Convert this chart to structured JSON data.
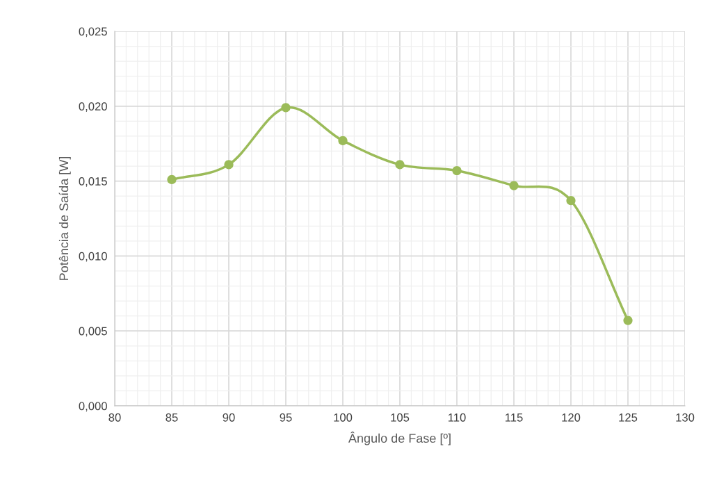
{
  "chart_data": {
    "type": "line",
    "xlabel": "Ângulo de Fase [º]",
    "ylabel": "Potência de Saída [W]",
    "x": [
      85,
      90,
      95,
      100,
      105,
      110,
      115,
      120,
      125
    ],
    "series": [
      {
        "color": "#9bbb59",
        "values": [
          0.0151,
          0.0161,
          0.0199,
          0.0177,
          0.0161,
          0.0157,
          0.0147,
          0.0137,
          0.0057
        ]
      }
    ],
    "xlim": [
      80,
      130
    ],
    "xticks": [
      80,
      85,
      90,
      95,
      100,
      105,
      110,
      115,
      120,
      125,
      130
    ],
    "ylim": [
      0,
      0.025
    ],
    "yticks": [
      {
        "value": 0,
        "label": "0,000"
      },
      {
        "value": 0.005,
        "label": "0,005"
      },
      {
        "value": 0.01,
        "label": "0,010"
      },
      {
        "value": 0.015,
        "label": "0,015"
      },
      {
        "value": 0.02,
        "label": "0,020"
      },
      {
        "value": 0.025,
        "label": "0,025"
      }
    ],
    "grid": true,
    "marker": "circle",
    "line_style": "solid",
    "legend": false
  }
}
